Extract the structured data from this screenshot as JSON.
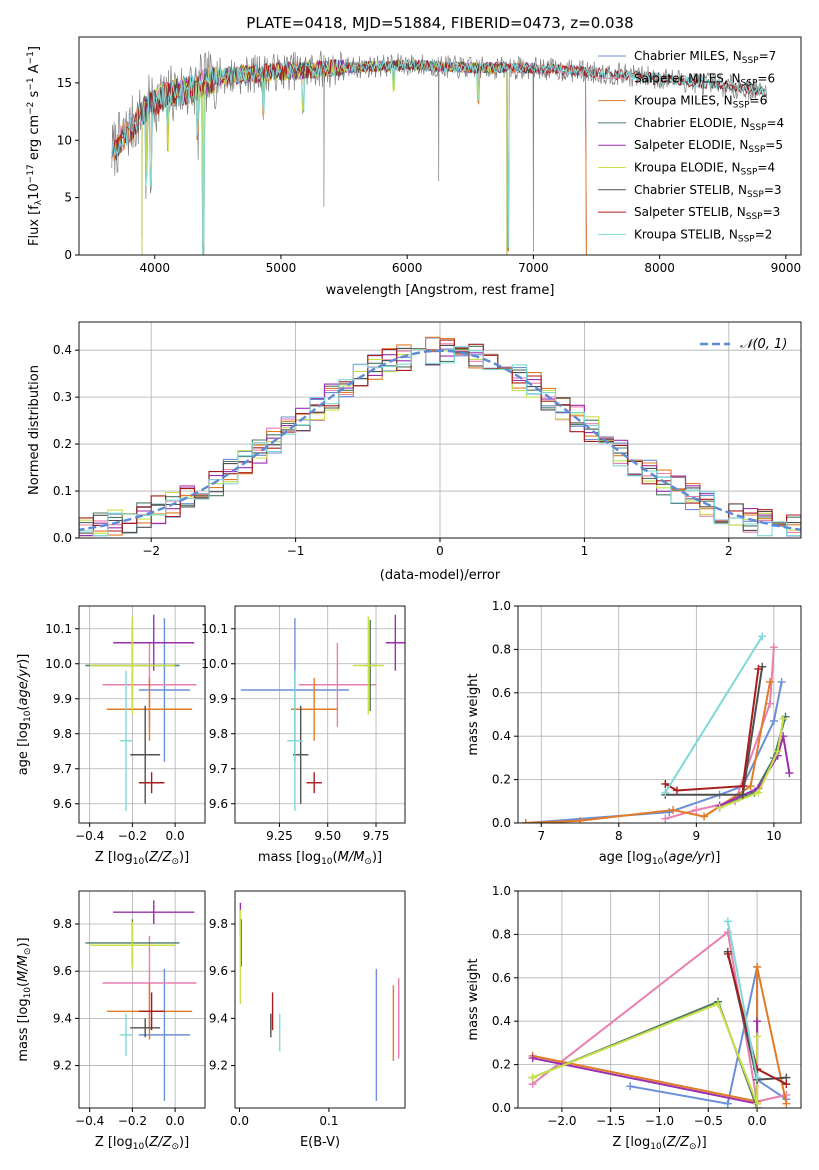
{
  "figure_title": "PLATE=0418, MJD=51884, FIBERID=0473, z=0.038",
  "colors": {
    "Chabrier MILES": "#6b8fd8",
    "Salpeter MILES": "#e87fb0",
    "Kroupa MILES": "#e07b28",
    "Chabrier ELODIE": "#4d7a63",
    "Salpeter ELODIE": "#9b2fae",
    "Kroupa ELODIE": "#c8e04a",
    "Chabrier STELIB": "#505050",
    "Salpeter STELIB": "#a81c1c",
    "Kroupa STELIB": "#7fd8d8",
    "data": "#7f7f7f",
    "normal": "#5b8bd6"
  },
  "chart_data": [
    {
      "id": "spectrum",
      "type": "line",
      "xlabel": "wavelength [Angstrom, rest frame]",
      "ylabel": "Flux [f_λ 10^-17 erg cm^-2 s^-1 A^-1]",
      "xlim": [
        3400,
        9120
      ],
      "ylim": [
        0,
        19
      ],
      "xticks": [
        4000,
        5000,
        6000,
        7000,
        8000,
        9000
      ],
      "yticks": [
        0,
        5,
        10,
        15
      ],
      "grid": false,
      "legend_position": "top-right",
      "legend": [
        {
          "model": "Chabrier MILES",
          "nssp": "7"
        },
        {
          "model": "Salpeter MILES",
          "nssp": "6"
        },
        {
          "model": "Kroupa MILES",
          "nssp": "6"
        },
        {
          "model": "Chabrier ELODIE",
          "nssp": "4"
        },
        {
          "model": "Salpeter ELODIE",
          "nssp": "5"
        },
        {
          "model": "Kroupa ELODIE",
          "nssp": "4"
        },
        {
          "model": "Chabrier STELIB",
          "nssp": "3"
        },
        {
          "model": "Salpeter STELIB",
          "nssp": "3"
        },
        {
          "model": "Kroupa STELIB",
          "nssp": "2"
        }
      ],
      "continuum": [
        [
          3660,
          9
        ],
        [
          3800,
          11
        ],
        [
          3950,
          13
        ],
        [
          4100,
          14
        ],
        [
          4300,
          14.5
        ],
        [
          4500,
          15.5
        ],
        [
          5000,
          16
        ],
        [
          5500,
          16.3
        ],
        [
          6000,
          16.6
        ],
        [
          6500,
          16.3
        ],
        [
          7000,
          16.3
        ],
        [
          7500,
          15.9
        ],
        [
          8000,
          15.4
        ],
        [
          8500,
          14.8
        ],
        [
          8850,
          14.2
        ]
      ],
      "model_ranges": {
        "Chabrier MILES": [
          3660,
          7420
        ],
        "Salpeter MILES": [
          3660,
          7420
        ],
        "Kroupa MILES": [
          3660,
          7420
        ],
        "Chabrier ELODIE": [
          3900,
          6790
        ],
        "Salpeter ELODIE": [
          3900,
          6790
        ],
        "Kroupa ELODIE": [
          3900,
          6790
        ],
        "Chabrier STELIB": [
          3660,
          8850
        ],
        "Salpeter STELIB": [
          3660,
          8850
        ],
        "Kroupa STELIB": [
          3660,
          8850
        ]
      },
      "absorption_features": [
        [
          3934,
          6
        ],
        [
          3969,
          6
        ],
        [
          4102,
          4
        ],
        [
          4340,
          4
        ],
        [
          4384,
          15
        ],
        [
          4861,
          3
        ],
        [
          5175,
          3
        ],
        [
          5892,
          2
        ],
        [
          6563,
          3
        ],
        [
          6800,
          16
        ]
      ],
      "data_spikes": [
        [
          5340,
          12
        ],
        [
          6250,
          10
        ],
        [
          7000,
          16
        ]
      ]
    },
    {
      "id": "residual_histogram",
      "type": "bar",
      "xlabel": "(data-model)/error",
      "ylabel": "Normed distribution",
      "xlim": [
        -2.5,
        2.5
      ],
      "ylim": [
        0,
        0.46
      ],
      "xticks": [
        -2,
        -1,
        0,
        1,
        2
      ],
      "yticks": [
        0.0,
        0.1,
        0.2,
        0.3,
        0.4
      ],
      "grid": true,
      "bin_width": 0.1,
      "legend_position": "top-right",
      "legend_label": "𝒩(0, 1)",
      "note": "step histograms of residuals for each of the nine models, plus the standard normal curve"
    },
    {
      "id": "age_vs_Z",
      "type": "scatter",
      "xlabel": "Z [log₁₀(Z/Z☉)]",
      "ylabel": "age  [log₁₀(age/yr)]",
      "xlim": [
        -0.45,
        0.14
      ],
      "ylim": [
        9.545,
        10.165
      ],
      "xticks": [
        -0.4,
        -0.2,
        0.0
      ],
      "yticks": [
        9.6,
        9.7,
        9.8,
        9.9,
        10.0,
        10.1
      ],
      "grid": true,
      "points": [
        {
          "model": "Chabrier MILES",
          "x": -0.05,
          "xerr": 0.12,
          "y": 9.925,
          "yerr": 0.205
        },
        {
          "model": "Salpeter MILES",
          "x": -0.12,
          "xerr": 0.22,
          "y": 9.94,
          "yerr": 0.12
        },
        {
          "model": "Kroupa MILES",
          "x": -0.12,
          "xerr": 0.2,
          "y": 9.87,
          "yerr": 0.09
        },
        {
          "model": "Chabrier ELODIE",
          "x": -0.2,
          "xerr": 0.22,
          "y": 9.995,
          "yerr": 0.13
        },
        {
          "model": "Salpeter ELODIE",
          "x": -0.1,
          "xerr": 0.19,
          "y": 10.06,
          "yerr": 0.08
        },
        {
          "model": "Kroupa ELODIE",
          "x": -0.2,
          "xerr": 0.2,
          "y": 9.995,
          "yerr": 0.14
        },
        {
          "model": "Chabrier STELIB",
          "x": -0.14,
          "xerr": 0.07,
          "y": 9.74,
          "yerr": 0.14
        },
        {
          "model": "Salpeter STELIB",
          "x": -0.11,
          "xerr": 0.06,
          "y": 9.66,
          "yerr": 0.03
        },
        {
          "model": "Kroupa STELIB",
          "x": -0.23,
          "xerr": 0.03,
          "y": 9.78,
          "yerr": 0.2
        }
      ]
    },
    {
      "id": "age_vs_mass",
      "type": "scatter",
      "xlabel": "mass [log₁₀(M/M☉)]",
      "ylabel": "",
      "xlim": [
        9.02,
        9.9
      ],
      "ylim": [
        9.545,
        10.165
      ],
      "xticks": [
        9.25,
        9.5,
        9.75
      ],
      "yticks": [
        9.6,
        9.7,
        9.8,
        9.9,
        10.0,
        10.1
      ],
      "grid": true,
      "points": [
        {
          "model": "Chabrier MILES",
          "x": 9.33,
          "xerr": 0.28,
          "y": 9.925,
          "yerr": 0.205
        },
        {
          "model": "Salpeter MILES",
          "x": 9.55,
          "xerr": 0.2,
          "y": 9.94,
          "yerr": 0.12
        },
        {
          "model": "Kroupa MILES",
          "x": 9.43,
          "xerr": 0.12,
          "y": 9.87,
          "yerr": 0.09
        },
        {
          "model": "Chabrier ELODIE",
          "x": 9.72,
          "xerr": 0.03,
          "y": 9.995,
          "yerr": 0.13
        },
        {
          "model": "Salpeter ELODIE",
          "x": 9.85,
          "xerr": 0.05,
          "y": 10.06,
          "yerr": 0.08
        },
        {
          "model": "Kroupa ELODIE",
          "x": 9.71,
          "xerr": 0.08,
          "y": 9.995,
          "yerr": 0.14
        },
        {
          "model": "Chabrier STELIB",
          "x": 9.36,
          "xerr": 0.04,
          "y": 9.74,
          "yerr": 0.14
        },
        {
          "model": "Salpeter STELIB",
          "x": 9.43,
          "xerr": 0.04,
          "y": 9.66,
          "yerr": 0.03
        },
        {
          "model": "Kroupa STELIB",
          "x": 9.33,
          "xerr": 0.04,
          "y": 9.78,
          "yerr": 0.2
        }
      ]
    },
    {
      "id": "mass_weight_vs_age",
      "type": "line",
      "xlabel": "age  [log₁₀(age/yr)]",
      "ylabel": "mass weight",
      "xlim": [
        6.7,
        10.35
      ],
      "ylim": [
        0,
        1.0
      ],
      "xticks": [
        7,
        8,
        9,
        10
      ],
      "yticks": [
        0.0,
        0.2,
        0.4,
        0.6,
        0.8,
        1.0
      ],
      "grid": true,
      "series": [
        {
          "model": "Chabrier MILES",
          "x": [
            6.8,
            8.65,
            9.3,
            9.6,
            10.0,
            10.1
          ],
          "y": [
            0.0,
            0.05,
            0.13,
            0.17,
            0.47,
            0.65
          ]
        },
        {
          "model": "Salpeter MILES",
          "x": [
            8.6,
            9.0,
            9.5,
            9.95,
            10.0
          ],
          "y": [
            0.02,
            0.06,
            0.1,
            0.55,
            0.81
          ]
        },
        {
          "model": "Kroupa MILES",
          "x": [
            6.8,
            7.5,
            8.7,
            9.1,
            9.7,
            9.95
          ],
          "y": [
            0.0,
            0.01,
            0.06,
            0.03,
            0.17,
            0.65
          ]
        },
        {
          "model": "Chabrier ELODIE",
          "x": [
            9.3,
            9.75,
            10.0,
            10.15
          ],
          "y": [
            0.07,
            0.14,
            0.3,
            0.49
          ]
        },
        {
          "model": "Salpeter ELODIE",
          "x": [
            9.3,
            9.8,
            10.05,
            10.12,
            10.2
          ],
          "y": [
            0.08,
            0.16,
            0.31,
            0.4,
            0.23
          ]
        },
        {
          "model": "Kroupa ELODIE",
          "x": [
            9.3,
            9.8,
            10.05,
            10.12
          ],
          "y": [
            0.07,
            0.14,
            0.33,
            0.48
          ]
        },
        {
          "model": "Chabrier STELIB",
          "x": [
            8.6,
            9.6,
            9.85
          ],
          "y": [
            0.13,
            0.13,
            0.72
          ]
        },
        {
          "model": "Salpeter STELIB",
          "x": [
            8.6,
            8.75,
            9.6,
            9.8
          ],
          "y": [
            0.18,
            0.15,
            0.17,
            0.71
          ]
        },
        {
          "model": "Kroupa STELIB",
          "x": [
            8.6,
            9.85
          ],
          "y": [
            0.14,
            0.86
          ]
        }
      ]
    },
    {
      "id": "mass_vs_Z",
      "type": "scatter",
      "xlabel": "Z [log₁₀(Z/Z☉)]",
      "ylabel": "mass [log₁₀(M/M☉)]",
      "xlim": [
        -0.45,
        0.14
      ],
      "ylim": [
        9.02,
        9.94
      ],
      "xticks": [
        -0.4,
        -0.2,
        0.0
      ],
      "yticks": [
        9.2,
        9.4,
        9.6,
        9.8
      ],
      "grid": true,
      "points": [
        {
          "model": "Chabrier MILES",
          "x": -0.05,
          "xerr": 0.12,
          "y": 9.33,
          "yerr": 0.28
        },
        {
          "model": "Salpeter MILES",
          "x": -0.12,
          "xerr": 0.22,
          "y": 9.55,
          "yerr": 0.2
        },
        {
          "model": "Kroupa MILES",
          "x": -0.12,
          "xerr": 0.2,
          "y": 9.43,
          "yerr": 0.12
        },
        {
          "model": "Chabrier ELODIE",
          "x": -0.2,
          "xerr": 0.22,
          "y": 9.72,
          "yerr": 0.1
        },
        {
          "model": "Salpeter ELODIE",
          "x": -0.1,
          "xerr": 0.19,
          "y": 9.85,
          "yerr": 0.05
        },
        {
          "model": "Kroupa ELODIE",
          "x": -0.2,
          "xerr": 0.2,
          "y": 9.71,
          "yerr": 0.1
        },
        {
          "model": "Chabrier STELIB",
          "x": -0.14,
          "xerr": 0.07,
          "y": 9.36,
          "yerr": 0.04
        },
        {
          "model": "Salpeter STELIB",
          "x": -0.11,
          "xerr": 0.06,
          "y": 9.43,
          "yerr": 0.08
        },
        {
          "model": "Kroupa STELIB",
          "x": -0.23,
          "xerr": 0.03,
          "y": 9.33,
          "yerr": 0.09
        }
      ]
    },
    {
      "id": "mass_vs_ebv",
      "type": "scatter",
      "xlabel": "E(B-V)",
      "ylabel": "",
      "xlim": [
        -0.005,
        0.185
      ],
      "ylim": [
        9.02,
        9.94
      ],
      "xticks": [
        0.0,
        0.1
      ],
      "yticks": [
        9.2,
        9.4,
        9.6,
        9.8
      ],
      "grid": false,
      "points": [
        {
          "model": "Chabrier MILES",
          "x": 0.153,
          "y": 9.33,
          "yerr": 0.28
        },
        {
          "model": "Salpeter MILES",
          "x": 0.178,
          "y": 9.4,
          "yerr": 0.17
        },
        {
          "model": "Kroupa MILES",
          "x": 0.172,
          "y": 9.38,
          "yerr": 0.16
        },
        {
          "model": "Chabrier ELODIE",
          "x": 0.002,
          "y": 9.72,
          "yerr": 0.1
        },
        {
          "model": "Salpeter ELODIE",
          "x": 0.001,
          "y": 9.82,
          "yerr": 0.07
        },
        {
          "model": "Kroupa ELODIE",
          "x": 0.001,
          "y": 9.66,
          "yerr": 0.2
        },
        {
          "model": "Chabrier STELIB",
          "x": 0.035,
          "y": 9.37,
          "yerr": 0.05
        },
        {
          "model": "Salpeter STELIB",
          "x": 0.037,
          "y": 9.43,
          "yerr": 0.08
        },
        {
          "model": "Kroupa STELIB",
          "x": 0.045,
          "y": 9.34,
          "yerr": 0.08
        }
      ]
    },
    {
      "id": "mass_weight_vs_Z",
      "type": "line",
      "xlabel": "Z [log₁₀(Z/Z☉)]",
      "ylabel": "mass weight",
      "xlim": [
        -2.45,
        0.45
      ],
      "ylim": [
        0,
        1.0
      ],
      "xticks": [
        -2.0,
        -1.5,
        -1.0,
        -0.5,
        0.0
      ],
      "yticks": [
        0.0,
        0.2,
        0.4,
        0.6,
        0.8,
        1.0
      ],
      "grid": true,
      "series": [
        {
          "model": "Chabrier MILES",
          "x": [
            -1.3,
            -0.3,
            0.0,
            0.0,
            0.3
          ],
          "y": [
            0.1,
            0.02,
            0.65,
            0.13,
            0.04
          ]
        },
        {
          "model": "Salpeter MILES",
          "x": [
            -2.3,
            -0.3,
            0.0,
            0.3
          ],
          "y": [
            0.11,
            0.81,
            0.03,
            0.06
          ]
        },
        {
          "model": "Kroupa MILES",
          "x": [
            -2.3,
            0.0,
            0.0,
            0.3
          ],
          "y": [
            0.24,
            0.03,
            0.65,
            0.02
          ]
        },
        {
          "model": "Chabrier ELODIE",
          "x": [
            -2.3,
            -0.4,
            0.0
          ],
          "y": [
            0.14,
            0.49,
            0.0
          ]
        },
        {
          "model": "Salpeter ELODIE",
          "x": [
            -2.3,
            0.0,
            0.0
          ],
          "y": [
            0.23,
            0.02,
            0.4
          ]
        },
        {
          "model": "Kroupa ELODIE",
          "x": [
            -2.3,
            -0.4,
            0.0,
            0.0
          ],
          "y": [
            0.14,
            0.48,
            0.02,
            0.33
          ]
        },
        {
          "model": "Chabrier STELIB",
          "x": [
            -0.3,
            0.0,
            0.3
          ],
          "y": [
            0.72,
            0.13,
            0.14
          ]
        },
        {
          "model": "Salpeter STELIB",
          "x": [
            -0.3,
            0.0,
            0.3
          ],
          "y": [
            0.71,
            0.18,
            0.11
          ]
        },
        {
          "model": "Kroupa STELIB",
          "x": [
            -0.3,
            0.0
          ],
          "y": [
            0.86,
            0.14
          ]
        }
      ]
    }
  ]
}
